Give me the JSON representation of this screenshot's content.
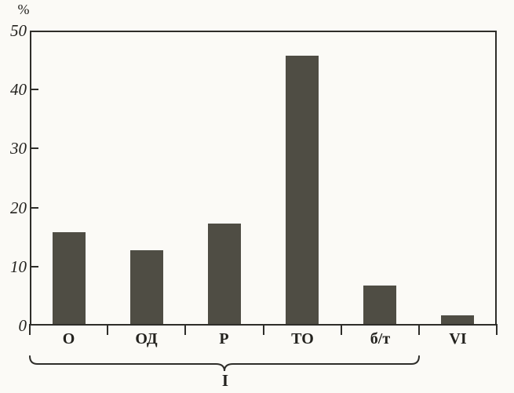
{
  "chart_data": {
    "type": "bar",
    "title": "",
    "ylabel": "%",
    "xlabel": "",
    "categories": [
      "О",
      "ОД",
      "Р",
      "ТО",
      "б/т",
      "VI"
    ],
    "values": [
      15.5,
      12.5,
      17,
      45.5,
      6.5,
      1.5
    ],
    "ylim": [
      0,
      50
    ],
    "yticks": [
      0,
      10,
      20,
      30,
      40,
      50
    ],
    "grid": false,
    "legend": "none",
    "bar_color": "#4f4d44",
    "axis_color": "#2e2d29",
    "background_color": "#fbfaf6",
    "group_bracket": {
      "label": "I",
      "from_category": "О",
      "to_category": "б/т",
      "span_count": 5
    }
  }
}
